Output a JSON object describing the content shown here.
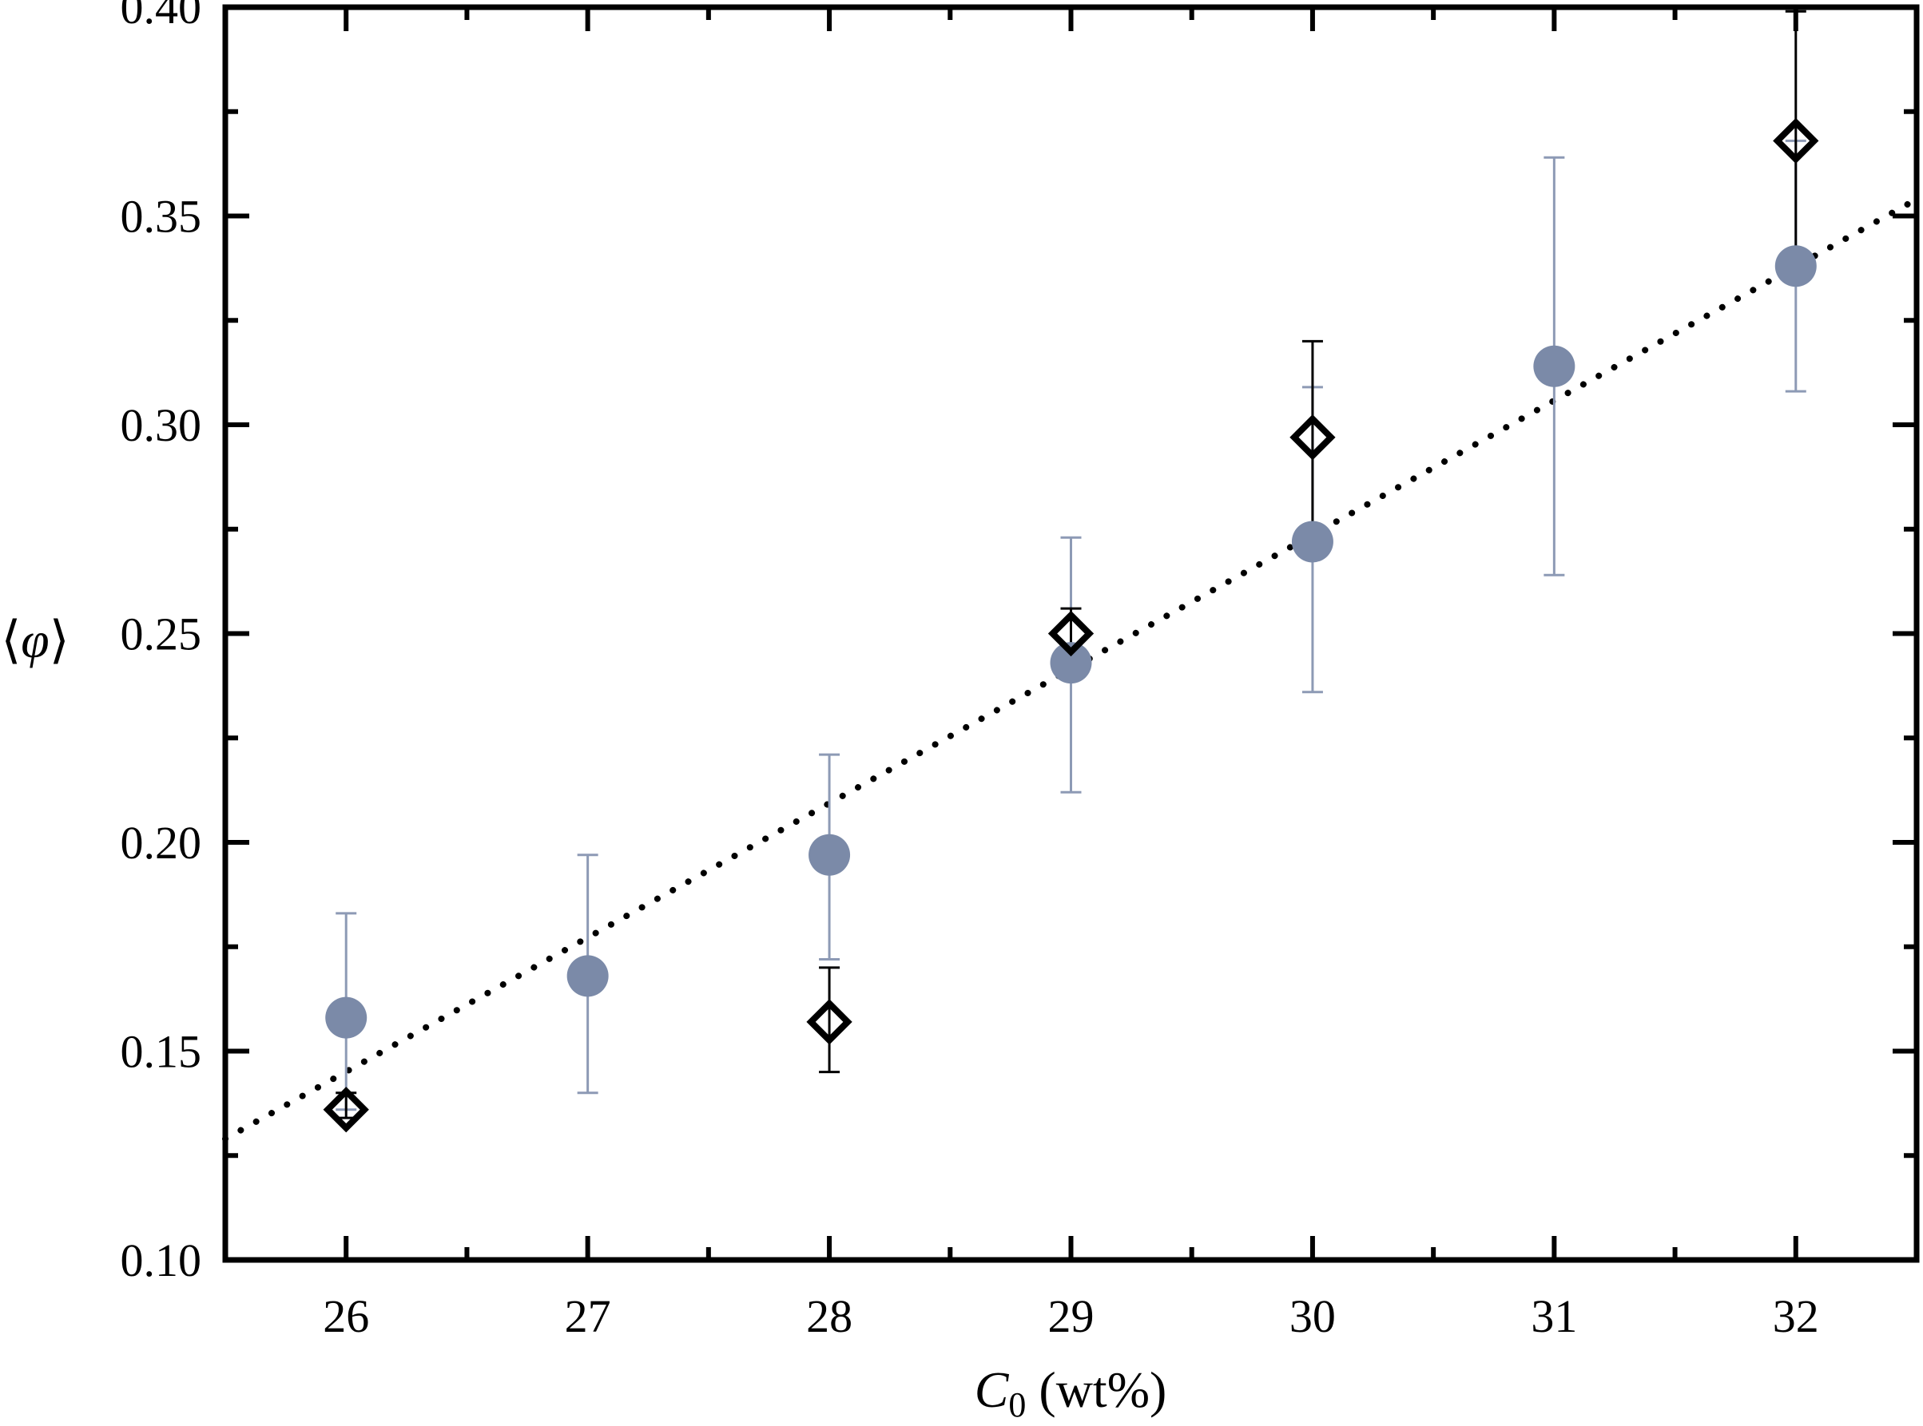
{
  "chart_data": {
    "type": "scatter",
    "xlabel": {
      "italic": "C",
      "sub": "0",
      "rest": " (wt%)"
    },
    "ylabel": {
      "left": "⟨",
      "italic": "φ",
      "right": "⟩"
    },
    "xlim": [
      25.5,
      32.5
    ],
    "ylim": [
      0.1,
      0.4
    ],
    "x_ticks": [
      26,
      27,
      28,
      29,
      30,
      31,
      32
    ],
    "x_tick_labels": [
      "26",
      "27",
      "28",
      "29",
      "30",
      "31",
      "32"
    ],
    "y_ticks": [
      0.1,
      0.15,
      0.2,
      0.25,
      0.3,
      0.35,
      0.4
    ],
    "y_tick_labels": [
      "0.10",
      "0.15",
      "0.20",
      "0.25",
      "0.30",
      "0.35",
      "0.40"
    ],
    "grid": false,
    "series": [
      {
        "marker": "filled-circle",
        "color": "#7b8aa8",
        "points": [
          {
            "x": 26,
            "y": 0.158,
            "err_low": 0.136,
            "err_high": 0.183
          },
          {
            "x": 27,
            "y": 0.168,
            "err_low": 0.14,
            "err_high": 0.197
          },
          {
            "x": 28,
            "y": 0.197,
            "err_low": 0.172,
            "err_high": 0.221
          },
          {
            "x": 29,
            "y": 0.243,
            "err_low": 0.212,
            "err_high": 0.273
          },
          {
            "x": 30,
            "y": 0.272,
            "err_low": 0.236,
            "err_high": 0.309
          },
          {
            "x": 31,
            "y": 0.314,
            "err_low": 0.264,
            "err_high": 0.364
          },
          {
            "x": 32,
            "y": 0.338,
            "err_low": 0.308,
            "err_high": 0.368
          }
        ]
      },
      {
        "marker": "open-diamond",
        "color": "#000000",
        "points": [
          {
            "x": 26,
            "y": 0.136,
            "err_low": 0.134,
            "err_high": 0.14
          },
          {
            "x": 28,
            "y": 0.157,
            "err_low": 0.145,
            "err_high": 0.17
          },
          {
            "x": 29,
            "y": 0.25,
            "err_low": 0.244,
            "err_high": 0.256
          },
          {
            "x": 30,
            "y": 0.297,
            "err_low": 0.274,
            "err_high": 0.32
          },
          {
            "x": 32,
            "y": 0.368,
            "err_low": 0.338,
            "err_high": 0.399
          }
        ]
      }
    ],
    "fit_line": {
      "style": "dotted",
      "color": "#000000",
      "x": [
        25.5,
        32.5
      ],
      "y": [
        0.129,
        0.354
      ]
    }
  }
}
